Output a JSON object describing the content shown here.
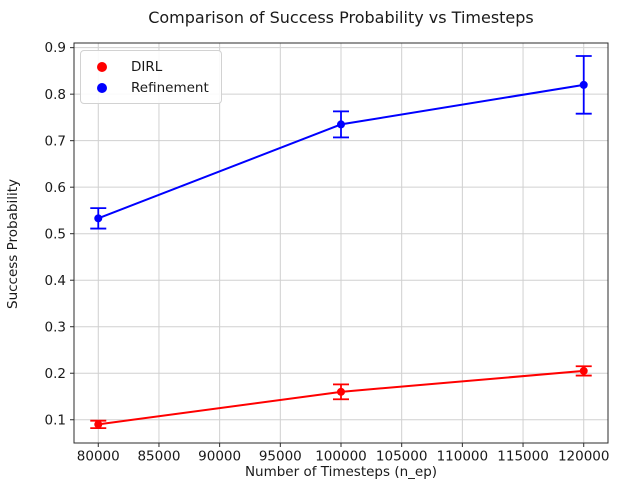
{
  "chart_data": {
    "type": "line",
    "title": "Comparison of Success Probability vs Timesteps",
    "xlabel": "Number of Timesteps (n_ep)",
    "ylabel": "Success Probability",
    "x": [
      80000,
      100000,
      120000
    ],
    "series": [
      {
        "name": "DIRL",
        "color": "#ff0000",
        "values": [
          0.09,
          0.16,
          0.205
        ],
        "yerr": [
          0.008,
          0.016,
          0.01
        ],
        "marker": "circle"
      },
      {
        "name": "Refinement",
        "color": "#0000ff",
        "values": [
          0.533,
          0.735,
          0.82
        ],
        "yerr": [
          0.022,
          0.028,
          0.062
        ],
        "marker": "circle"
      }
    ],
    "xticks": [
      80000,
      85000,
      90000,
      95000,
      100000,
      105000,
      110000,
      115000,
      120000
    ],
    "yticks": [
      0.1,
      0.2,
      0.3,
      0.4,
      0.5,
      0.6,
      0.7,
      0.8,
      0.9
    ],
    "xlim": [
      78000,
      122000
    ],
    "ylim": [
      0.05,
      0.91
    ],
    "grid": true,
    "grid_color": "#d0d0d0",
    "frame_color": "#2b2b2b",
    "tick_color": "#2b2b2b",
    "text_color": "#1a1a1a",
    "legend": {
      "position": "upper-left",
      "entries": [
        "DIRL",
        "Refinement"
      ]
    }
  }
}
